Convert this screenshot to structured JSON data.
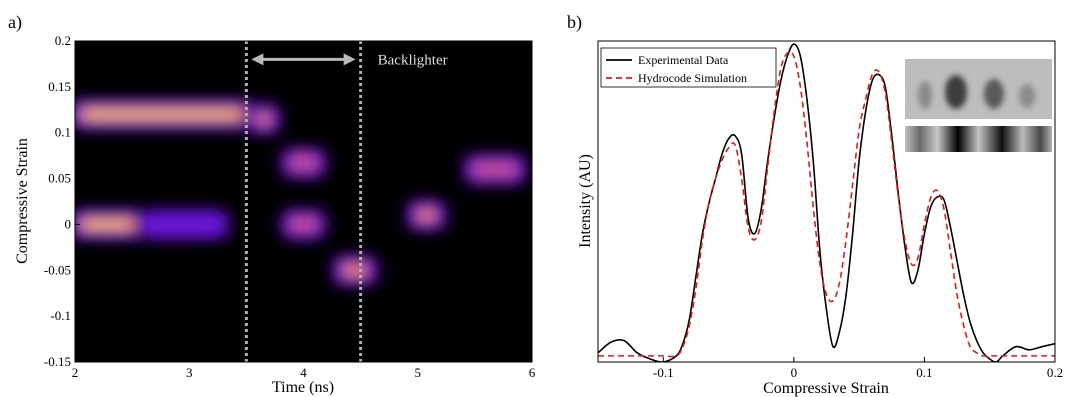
{
  "panels": {
    "a_label": "a)",
    "b_label": "b)"
  },
  "chart_data": [
    {
      "type": "heatmap",
      "xlabel": "Time (ns)",
      "ylabel": "Compressive Strain",
      "xlim": [
        2,
        6
      ],
      "ylim": [
        -0.15,
        0.2
      ],
      "x_ticks": [
        "2",
        "3",
        "4",
        "5",
        "6"
      ],
      "y_ticks": [
        "-0.15",
        "-0.1",
        "-0.05",
        "0",
        "0.05",
        "0.1",
        "0.15",
        "0.2"
      ],
      "background_color": "#000000",
      "colormap": [
        "#000000",
        "#2a006b",
        "#6a14d8",
        "#c85090",
        "#f08a20",
        "#ffcc50"
      ],
      "features": [
        {
          "x_start": 2.0,
          "x_end": 3.55,
          "strain": 0.12,
          "intensity": 1.0
        },
        {
          "x_start": 2.0,
          "x_end": 2.6,
          "strain": 0.0,
          "intensity": 0.95
        },
        {
          "x_start": 2.6,
          "x_end": 3.3,
          "strain": 0.0,
          "intensity": 0.3
        },
        {
          "x_start": 3.55,
          "x_end": 3.75,
          "strain": 0.115,
          "intensity": 0.85
        },
        {
          "x_start": 3.85,
          "x_end": 4.15,
          "strain": 0.067,
          "intensity": 0.6
        },
        {
          "x_start": 3.85,
          "x_end": 4.15,
          "strain": 0.0,
          "intensity": 0.6
        },
        {
          "x_start": 4.3,
          "x_end": 4.6,
          "strain": -0.05,
          "intensity": 0.8
        },
        {
          "x_start": 4.95,
          "x_end": 5.2,
          "strain": 0.01,
          "intensity": 0.7
        },
        {
          "x_start": 5.45,
          "x_end": 5.9,
          "strain": 0.06,
          "intensity": 0.65
        }
      ],
      "dotted_lines_x": [
        3.5,
        4.5
      ],
      "arrow": {
        "x_from": 3.5,
        "x_to": 4.5,
        "strain": 0.18
      },
      "annotation": "Backlighter"
    },
    {
      "type": "line",
      "xlabel": "Compressive Strain",
      "ylabel": "Intensity (AU)",
      "xlim": [
        -0.15,
        0.2
      ],
      "ylim": [
        0,
        1.05
      ],
      "x_ticks": [
        "-0.1",
        "0",
        "0.1",
        "0.2"
      ],
      "y_ticks": [],
      "legend_position": "top-left",
      "series": [
        {
          "name": "Experimental Data",
          "color": "#000000",
          "style": "solid",
          "x": [
            -0.15,
            -0.14,
            -0.13,
            -0.12,
            -0.11,
            -0.1,
            -0.09,
            -0.085,
            -0.08,
            -0.075,
            -0.07,
            -0.065,
            -0.06,
            -0.055,
            -0.05,
            -0.045,
            -0.04,
            -0.035,
            -0.03,
            -0.025,
            -0.02,
            -0.015,
            -0.01,
            -0.005,
            0,
            0.005,
            0.01,
            0.015,
            0.02,
            0.025,
            0.03,
            0.035,
            0.04,
            0.045,
            0.05,
            0.055,
            0.06,
            0.065,
            0.07,
            0.075,
            0.08,
            0.085,
            0.09,
            0.095,
            0.1,
            0.105,
            0.11,
            0.115,
            0.12,
            0.125,
            0.13,
            0.135,
            0.14,
            0.145,
            0.15,
            0.155,
            0.16,
            0.17,
            0.18,
            0.19,
            0.2
          ],
          "y": [
            0.03,
            0.065,
            0.07,
            0.03,
            0.01,
            0.0,
            0.02,
            0.06,
            0.14,
            0.28,
            0.42,
            0.52,
            0.6,
            0.68,
            0.73,
            0.74,
            0.68,
            0.47,
            0.42,
            0.5,
            0.66,
            0.8,
            0.92,
            1.0,
            1.04,
            1.0,
            0.86,
            0.65,
            0.36,
            0.17,
            0.05,
            0.1,
            0.22,
            0.42,
            0.66,
            0.82,
            0.92,
            0.94,
            0.9,
            0.74,
            0.55,
            0.38,
            0.26,
            0.3,
            0.42,
            0.51,
            0.54,
            0.53,
            0.44,
            0.33,
            0.22,
            0.13,
            0.07,
            0.03,
            0.01,
            0.0,
            0.02,
            0.05,
            0.04,
            0.05,
            0.06
          ]
        },
        {
          "name": "Hydrocode Simulation",
          "color": "#e31a1c",
          "style": "dashed",
          "x": [
            -0.15,
            -0.14,
            -0.13,
            -0.12,
            -0.11,
            -0.1,
            -0.09,
            -0.085,
            -0.08,
            -0.075,
            -0.07,
            -0.065,
            -0.06,
            -0.055,
            -0.05,
            -0.045,
            -0.04,
            -0.035,
            -0.03,
            -0.025,
            -0.02,
            -0.015,
            -0.01,
            -0.005,
            0,
            0.005,
            0.01,
            0.015,
            0.02,
            0.025,
            0.03,
            0.035,
            0.04,
            0.045,
            0.05,
            0.055,
            0.06,
            0.065,
            0.07,
            0.075,
            0.08,
            0.085,
            0.09,
            0.095,
            0.1,
            0.105,
            0.11,
            0.115,
            0.12,
            0.125,
            0.13,
            0.135,
            0.14,
            0.145,
            0.15,
            0.155,
            0.16,
            0.17,
            0.18,
            0.19,
            0.2
          ],
          "y": [
            0.02,
            0.02,
            0.02,
            0.02,
            0.02,
            0.02,
            0.02,
            0.05,
            0.12,
            0.24,
            0.4,
            0.52,
            0.6,
            0.66,
            0.7,
            0.71,
            0.6,
            0.44,
            0.4,
            0.46,
            0.64,
            0.82,
            0.96,
            1.01,
            1.0,
            0.9,
            0.72,
            0.5,
            0.32,
            0.22,
            0.2,
            0.26,
            0.4,
            0.58,
            0.76,
            0.86,
            0.94,
            0.95,
            0.88,
            0.72,
            0.54,
            0.4,
            0.32,
            0.34,
            0.45,
            0.54,
            0.56,
            0.5,
            0.36,
            0.22,
            0.12,
            0.05,
            0.03,
            0.02,
            0.02,
            0.02,
            0.02,
            0.02,
            0.02,
            0.02,
            0.02
          ]
        }
      ]
    }
  ]
}
